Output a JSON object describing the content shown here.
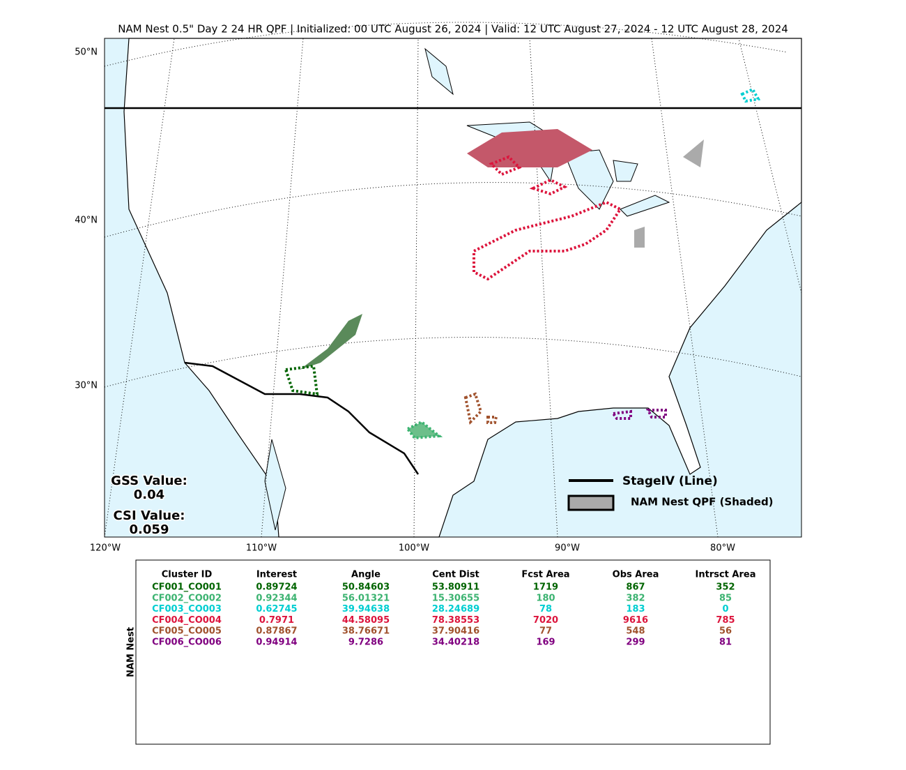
{
  "title": "NAM Nest 0.5\" Day 2 24 HR QPF | Initialized: 00 UTC August 26, 2024 | Valid: 12 UTC August 27, 2024 - 12 UTC August 28, 2024",
  "map": {
    "lat_labels": [
      "50°N",
      "40°N",
      "30°N"
    ],
    "lon_labels": [
      "120°W",
      "110°W",
      "100°W",
      "90°W",
      "80°W"
    ]
  },
  "scores": {
    "gss_label": "GSS Value:",
    "gss_value": "0.04",
    "csi_label": "CSI Value:",
    "csi_value": "0.059"
  },
  "legend": {
    "line_label": "StageIV (Line)",
    "shaded_label": "NAM Nest QPF (Shaded)"
  },
  "table": {
    "side_label": "NAM Nest",
    "headers": [
      "Cluster ID",
      "Interest",
      "Angle",
      "Cent Dist",
      "Fcst Area",
      "Obs Area",
      "Intrsct Area"
    ],
    "rows": [
      {
        "color": "#006400",
        "cells": [
          "CF001_CO001",
          "0.89724",
          "50.84603",
          "53.80911",
          "1719",
          "867",
          "352"
        ]
      },
      {
        "color": "#3cb371",
        "cells": [
          "CF002_CO002",
          "0.92344",
          "56.01321",
          "15.30655",
          "180",
          "382",
          "85"
        ]
      },
      {
        "color": "#00ced1",
        "cells": [
          "CF003_CO003",
          "0.62745",
          "39.94638",
          "28.24689",
          "78",
          "183",
          "0"
        ]
      },
      {
        "color": "#dc143c",
        "cells": [
          "CF004_CO004",
          "0.7971",
          "44.58095",
          "78.38553",
          "7020",
          "9616",
          "785"
        ]
      },
      {
        "color": "#a0522d",
        "cells": [
          "CF005_CO005",
          "0.87867",
          "38.76671",
          "37.90416",
          "77",
          "548",
          "56"
        ]
      },
      {
        "color": "#800080",
        "cells": [
          "CF006_CO006",
          "0.94914",
          "9.7286",
          "34.40218",
          "169",
          "299",
          "81"
        ]
      }
    ]
  }
}
